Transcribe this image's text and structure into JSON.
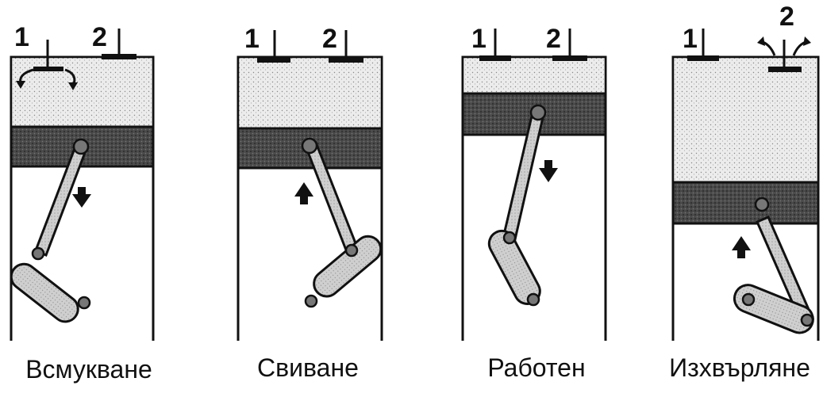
{
  "strokes": [
    {
      "caption": "Всмукване",
      "valve_labels": [
        "1",
        "2"
      ],
      "piston_direction": "down",
      "open_valve": "1"
    },
    {
      "caption": "Свиване",
      "valve_labels": [
        "1",
        "2"
      ],
      "piston_direction": "up",
      "open_valve": "none"
    },
    {
      "caption": "Работен",
      "valve_labels": [
        "1",
        "2"
      ],
      "piston_direction": "down",
      "open_valve": "none"
    },
    {
      "caption": "Изхвърляне",
      "valve_labels": [
        "1",
        "2"
      ],
      "piston_direction": "up",
      "open_valve": "2"
    }
  ],
  "colors": {
    "ink": "#111111",
    "gas": "#e8e8e8",
    "piston": "#3a3a3a",
    "rod": "#bdbdbd"
  }
}
